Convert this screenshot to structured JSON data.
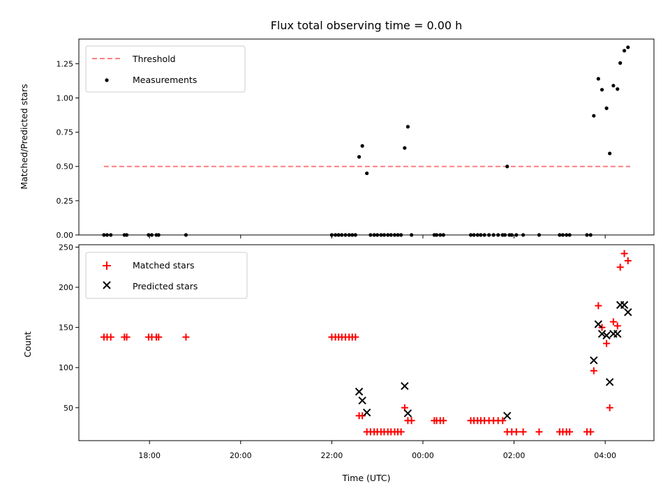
{
  "chart_data": [
    {
      "type": "scatter",
      "title": "Flux total observing time = 0.00 h",
      "xlabel": "",
      "ylabel": "Matched/Predicted stars",
      "x_unit": "hours (UTC, since 00:00 on first day; negative = previous evening)",
      "xlim": [
        -7.55,
        5.07
      ],
      "ylim": [
        0,
        1.43
      ],
      "yticks": [
        "0.00",
        "0.25",
        "0.50",
        "0.75",
        "1.00",
        "1.25"
      ],
      "legend_position": "upper left",
      "threshold": {
        "name": "Threshold",
        "value": 0.5,
        "x_start": -7.0,
        "x_end": 4.55,
        "color": "#ff7f7f",
        "style": "dashed"
      },
      "series": [
        {
          "name": "Measurements",
          "marker": "dot",
          "color": "#000000",
          "points": [
            [
              -7.0,
              0
            ],
            [
              -6.93,
              0
            ],
            [
              -6.85,
              0
            ],
            [
              -6.55,
              0
            ],
            [
              -6.5,
              0
            ],
            [
              -6.02,
              0
            ],
            [
              -5.95,
              0
            ],
            [
              -5.85,
              0
            ],
            [
              -5.8,
              0
            ],
            [
              -5.2,
              0
            ],
            [
              -2.0,
              0
            ],
            [
              -1.92,
              0
            ],
            [
              -1.85,
              0
            ],
            [
              -1.78,
              0
            ],
            [
              -1.7,
              0
            ],
            [
              -1.62,
              0
            ],
            [
              -1.55,
              0
            ],
            [
              -1.48,
              0
            ],
            [
              -1.4,
              0.57
            ],
            [
              -1.33,
              0.65
            ],
            [
              -1.23,
              0.45
            ],
            [
              -1.15,
              0
            ],
            [
              -1.07,
              0
            ],
            [
              -1.0,
              0
            ],
            [
              -0.92,
              0
            ],
            [
              -0.85,
              0
            ],
            [
              -0.77,
              0
            ],
            [
              -0.7,
              0
            ],
            [
              -0.62,
              0
            ],
            [
              -0.55,
              0
            ],
            [
              -0.48,
              0
            ],
            [
              -0.4,
              0.635
            ],
            [
              -0.33,
              0.79
            ],
            [
              -0.25,
              0
            ],
            [
              0.25,
              0
            ],
            [
              0.3,
              0
            ],
            [
              0.38,
              0
            ],
            [
              0.45,
              0
            ],
            [
              1.05,
              0
            ],
            [
              1.12,
              0
            ],
            [
              1.2,
              0
            ],
            [
              1.27,
              0
            ],
            [
              1.35,
              0
            ],
            [
              1.45,
              0
            ],
            [
              1.55,
              0
            ],
            [
              1.65,
              0
            ],
            [
              1.75,
              0
            ],
            [
              1.8,
              0
            ],
            [
              1.85,
              0.5
            ],
            [
              1.9,
              0
            ],
            [
              1.95,
              0
            ],
            [
              2.05,
              0
            ],
            [
              2.2,
              0
            ],
            [
              2.55,
              0
            ],
            [
              3.0,
              0
            ],
            [
              3.07,
              0
            ],
            [
              3.15,
              0
            ],
            [
              3.22,
              0
            ],
            [
              3.6,
              0
            ],
            [
              3.68,
              0
            ],
            [
              3.75,
              0.87
            ],
            [
              3.85,
              1.14
            ],
            [
              3.93,
              1.06
            ],
            [
              4.03,
              0.925
            ],
            [
              4.1,
              0.595
            ],
            [
              4.18,
              1.09
            ],
            [
              4.27,
              1.065
            ],
            [
              4.33,
              1.255
            ],
            [
              4.42,
              1.345
            ],
            [
              4.5,
              1.37
            ]
          ]
        }
      ]
    },
    {
      "type": "scatter",
      "title": "",
      "xlabel": "Time (UTC)",
      "ylabel": "Count",
      "x_unit": "hours (UTC, since 00:00 on first day; negative = previous evening)",
      "xlim": [
        -7.55,
        5.07
      ],
      "ylim": [
        9,
        253
      ],
      "yticks": [
        "50",
        "100",
        "150",
        "200",
        "250"
      ],
      "xticks": [
        {
          "value": -6.0,
          "label": "18:00"
        },
        {
          "value": -4.0,
          "label": "20:00"
        },
        {
          "value": -2.0,
          "label": "22:00"
        },
        {
          "value": 0.0,
          "label": "00:00"
        },
        {
          "value": 2.0,
          "label": "02:00"
        },
        {
          "value": 4.0,
          "label": "04:00"
        }
      ],
      "legend_position": "upper left",
      "series": [
        {
          "name": "Matched stars",
          "marker": "plus",
          "color": "#ff0000",
          "points": [
            [
              -7.0,
              138
            ],
            [
              -6.93,
              138
            ],
            [
              -6.85,
              138
            ],
            [
              -6.55,
              138
            ],
            [
              -6.5,
              138
            ],
            [
              -6.02,
              138
            ],
            [
              -5.95,
              138
            ],
            [
              -5.85,
              138
            ],
            [
              -5.8,
              138
            ],
            [
              -5.2,
              138
            ],
            [
              -2.0,
              138
            ],
            [
              -1.92,
              138
            ],
            [
              -1.85,
              138
            ],
            [
              -1.78,
              138
            ],
            [
              -1.7,
              138
            ],
            [
              -1.62,
              138
            ],
            [
              -1.55,
              138
            ],
            [
              -1.48,
              138
            ],
            [
              -1.4,
              40
            ],
            [
              -1.33,
              40
            ],
            [
              -1.23,
              20
            ],
            [
              -1.15,
              20
            ],
            [
              -1.07,
              20
            ],
            [
              -1.0,
              20
            ],
            [
              -0.92,
              20
            ],
            [
              -0.85,
              20
            ],
            [
              -0.77,
              20
            ],
            [
              -0.7,
              20
            ],
            [
              -0.62,
              20
            ],
            [
              -0.55,
              20
            ],
            [
              -0.48,
              20
            ],
            [
              -0.4,
              50
            ],
            [
              -0.33,
              34
            ],
            [
              -0.25,
              34
            ],
            [
              0.25,
              34
            ],
            [
              0.3,
              34
            ],
            [
              0.38,
              34
            ],
            [
              0.45,
              34
            ],
            [
              1.05,
              34
            ],
            [
              1.12,
              34
            ],
            [
              1.2,
              34
            ],
            [
              1.27,
              34
            ],
            [
              1.35,
              34
            ],
            [
              1.45,
              34
            ],
            [
              1.55,
              34
            ],
            [
              1.65,
              34
            ],
            [
              1.75,
              34
            ],
            [
              1.85,
              20
            ],
            [
              1.95,
              20
            ],
            [
              2.05,
              20
            ],
            [
              2.2,
              20
            ],
            [
              2.55,
              20
            ],
            [
              3.0,
              20
            ],
            [
              3.07,
              20
            ],
            [
              3.15,
              20
            ],
            [
              3.22,
              20
            ],
            [
              3.6,
              20
            ],
            [
              3.68,
              20
            ],
            [
              3.75,
              96
            ],
            [
              3.85,
              177
            ],
            [
              3.93,
              150
            ],
            [
              4.03,
              130
            ],
            [
              4.1,
              50
            ],
            [
              4.18,
              157
            ],
            [
              4.27,
              152
            ],
            [
              4.33,
              225
            ],
            [
              4.42,
              242
            ],
            [
              4.5,
              233
            ]
          ]
        },
        {
          "name": "Predicted stars",
          "marker": "x",
          "color": "#000000",
          "points": [
            [
              -1.4,
              70
            ],
            [
              -1.33,
              59
            ],
            [
              -1.23,
              44
            ],
            [
              -0.4,
              77
            ],
            [
              -0.33,
              43
            ],
            [
              1.85,
              40
            ],
            [
              3.75,
              109
            ],
            [
              3.85,
              154
            ],
            [
              3.93,
              142
            ],
            [
              4.03,
              140
            ],
            [
              4.1,
              82
            ],
            [
              4.18,
              142
            ],
            [
              4.27,
              142
            ],
            [
              4.33,
              178
            ],
            [
              4.42,
              178
            ],
            [
              4.5,
              169
            ]
          ]
        }
      ]
    }
  ]
}
